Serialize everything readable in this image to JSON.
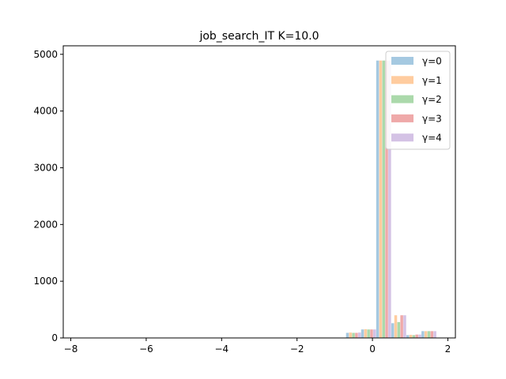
{
  "chart_data": {
    "type": "bar",
    "title": "job_search_IT K=10.0",
    "xlabel": "",
    "ylabel": "",
    "xlim": [
      -8.2,
      2.2
    ],
    "ylim": [
      0,
      5150
    ],
    "xticks": [
      -8,
      -6,
      -4,
      -2,
      0,
      2
    ],
    "xtick_labels": [
      "−8",
      "−6",
      "−4",
      "−2",
      "0",
      "2"
    ],
    "yticks": [
      0,
      1000,
      2000,
      3000,
      4000,
      5000
    ],
    "ytick_labels": [
      "0",
      "1000",
      "2000",
      "3000",
      "4000",
      "5000"
    ],
    "grid": false,
    "legend_position": "top-right",
    "bar_alpha": 0.4,
    "bin_width": 0.4,
    "bins": [
      -7.9,
      -7.5,
      -7.1,
      -6.7,
      -6.3,
      -5.9,
      -5.5,
      -5.1,
      -4.7,
      -4.3,
      -3.9,
      -3.5,
      -3.1,
      -2.7,
      -2.3,
      -1.9,
      -1.5,
      -1.1,
      -0.7,
      -0.3,
      0.1,
      0.5,
      0.9,
      1.3
    ],
    "series": [
      {
        "name": "γ=0",
        "color": "#1f77b4",
        "values": [
          0,
          0,
          0,
          0,
          0,
          0,
          0,
          0,
          0,
          0,
          0,
          0,
          0,
          0,
          0,
          0,
          0,
          0,
          90,
          150,
          4890,
          260,
          50,
          120
        ]
      },
      {
        "name": "γ=1",
        "color": "#ff7f0e",
        "values": [
          0,
          0,
          0,
          0,
          0,
          0,
          0,
          0,
          0,
          0,
          0,
          0,
          0,
          0,
          0,
          0,
          0,
          0,
          95,
          155,
          4890,
          400,
          55,
          120
        ]
      },
      {
        "name": "γ=2",
        "color": "#2ca02c",
        "values": [
          0,
          0,
          0,
          0,
          0,
          0,
          0,
          0,
          0,
          0,
          0,
          0,
          0,
          0,
          0,
          0,
          0,
          0,
          90,
          150,
          4890,
          280,
          50,
          120
        ]
      },
      {
        "name": "γ=3",
        "color": "#d62728",
        "values": [
          0,
          0,
          0,
          0,
          0,
          0,
          0,
          0,
          0,
          0,
          0,
          0,
          0,
          0,
          0,
          0,
          0,
          0,
          90,
          150,
          4890,
          400,
          60,
          120
        ]
      },
      {
        "name": "γ=4",
        "color": "#9467bd",
        "values": [
          0,
          0,
          0,
          0,
          0,
          0,
          0,
          0,
          0,
          0,
          0,
          0,
          0,
          0,
          0,
          0,
          0,
          0,
          95,
          150,
          4890,
          400,
          60,
          120
        ]
      }
    ]
  }
}
